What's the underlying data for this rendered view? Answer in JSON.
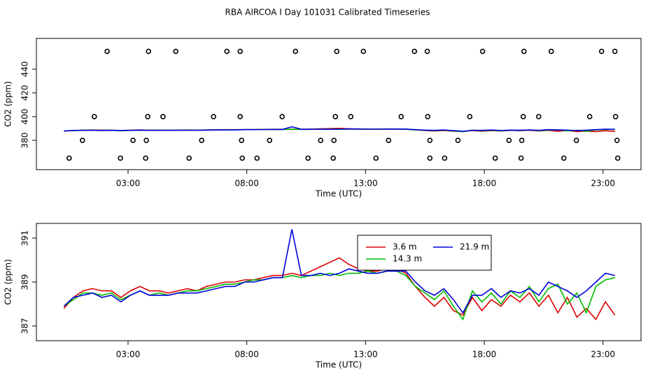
{
  "chart_data": [
    {
      "type": "scatter",
      "title": "RBA AIRCOA I  Day 101031  Calibrated Timeseries",
      "xlabel": "Time (UTC)",
      "ylabel": "CO2 (ppm)",
      "xlim": [
        -0.86,
        24.6
      ],
      "xticks": [
        {
          "value": 3,
          "label": "03:00"
        },
        {
          "value": 8,
          "label": "08:00"
        },
        {
          "value": 13,
          "label": "13:00"
        },
        {
          "value": 18,
          "label": "18:00"
        },
        {
          "value": 23,
          "label": "23:00"
        }
      ],
      "ylim": [
        355.3,
        465.9
      ],
      "yticks": [
        380,
        400,
        420,
        440
      ],
      "series": [
        {
          "color": "#000000",
          "x": [
            2.12,
            3.86,
            5.01,
            7.16,
            7.72,
            10.05,
            11.79,
            12.91,
            15.06,
            15.6,
            17.93,
            19.67,
            20.82,
            22.94,
            23.5,
            1.58,
            3.83,
            4.47,
            6.6,
            7.72,
            9.49,
            11.73,
            12.38,
            14.5,
            15.62,
            17.39,
            19.64,
            20.29,
            22.44,
            23.53,
            1.08,
            3.21,
            3.77,
            6.1,
            7.78,
            8.96,
            11.11,
            11.67,
            13.97,
            15.71,
            16.89,
            19.04,
            19.58,
            21.88,
            23.59,
            0.52,
            2.68,
            3.74,
            5.57,
            7.81,
            8.43,
            10.58,
            11.64,
            13.44,
            15.71,
            16.33,
            18.46,
            19.55,
            21.35,
            23.62
          ],
          "values": [
            455,
            455,
            455,
            455,
            455,
            455,
            455,
            455,
            455,
            455,
            455,
            455,
            455,
            455,
            455,
            400,
            400,
            400,
            400,
            400,
            400,
            400,
            400,
            400,
            400,
            400,
            400,
            400,
            400,
            400,
            380,
            380,
            380,
            380,
            380,
            380,
            380,
            380,
            380,
            380,
            380,
            380,
            380,
            380,
            380,
            365,
            365,
            365,
            365,
            365,
            365,
            365,
            365,
            365,
            365,
            365,
            365,
            365,
            365,
            365
          ]
        }
      ]
    },
    {
      "type": "line",
      "xlabel": "Time (UTC)",
      "ylabel": "CO2 (ppm)",
      "legend": "top",
      "xlim": [
        -0.86,
        24.6
      ],
      "xticks": [
        {
          "value": 3,
          "label": "03:00"
        },
        {
          "value": 8,
          "label": "08:00"
        },
        {
          "value": 13,
          "label": "13:00"
        },
        {
          "value": 18,
          "label": "18:00"
        },
        {
          "value": 23,
          "label": "23:00"
        }
      ],
      "ylim": [
        386.33,
        391.67
      ],
      "yticks": [
        387,
        389,
        391
      ],
      "x": [
        0.3,
        0.7,
        1.1,
        1.5,
        1.9,
        2.3,
        2.7,
        3.1,
        3.5,
        3.9,
        4.3,
        4.7,
        5.1,
        5.5,
        5.9,
        6.3,
        6.7,
        7.1,
        7.5,
        7.9,
        8.3,
        8.7,
        9.1,
        9.5,
        9.9,
        10.3,
        10.7,
        11.1,
        11.5,
        11.9,
        12.3,
        12.7,
        13.1,
        13.5,
        13.9,
        14.3,
        14.7,
        15.1,
        15.5,
        15.9,
        16.3,
        16.7,
        17.1,
        17.5,
        17.9,
        18.3,
        18.7,
        19.1,
        19.5,
        19.9,
        20.3,
        20.7,
        21.1,
        21.5,
        21.9,
        22.3,
        22.7,
        23.1,
        23.5
      ],
      "series": [
        {
          "name": "3.6 m",
          "color": "#dd0000",
          "values": [
            387.8,
            388.3,
            388.6,
            388.7,
            388.6,
            388.6,
            388.3,
            388.6,
            388.8,
            388.6,
            388.6,
            388.5,
            388.6,
            388.7,
            388.6,
            388.8,
            388.9,
            389.0,
            389.0,
            389.1,
            389.1,
            389.2,
            389.3,
            389.3,
            389.4,
            389.3,
            389.5,
            389.7,
            389.9,
            390.1,
            389.8,
            389.6,
            389.5,
            389.5,
            389.6,
            389.6,
            389.4,
            388.8,
            388.3,
            387.9,
            388.3,
            387.7,
            387.5,
            388.3,
            387.7,
            388.2,
            387.9,
            388.4,
            388.1,
            388.5,
            387.9,
            388.4,
            387.6,
            388.3,
            387.4,
            387.8,
            387.3,
            388.1,
            387.5
          ]
        },
        {
          "name": "14.3 m",
          "color": "#00bb00",
          "values": [
            387.9,
            388.2,
            388.5,
            388.5,
            388.4,
            388.5,
            388.2,
            388.4,
            388.6,
            388.4,
            388.5,
            388.4,
            388.5,
            388.6,
            388.6,
            388.7,
            388.8,
            388.9,
            388.9,
            389.0,
            389.1,
            389.1,
            389.2,
            389.2,
            389.3,
            389.2,
            389.3,
            389.3,
            389.4,
            389.3,
            389.4,
            389.4,
            389.5,
            389.4,
            389.5,
            389.5,
            389.3,
            388.8,
            388.5,
            388.2,
            388.6,
            387.9,
            387.3,
            388.6,
            388.1,
            388.5,
            388.0,
            388.6,
            388.3,
            388.8,
            388.1,
            388.7,
            388.9,
            388.0,
            388.5,
            387.6,
            388.8,
            389.1,
            389.2
          ]
        },
        {
          "name": "21.9 m",
          "color": "#0000dd",
          "values": [
            387.9,
            388.3,
            388.4,
            388.5,
            388.3,
            388.4,
            388.1,
            388.4,
            388.6,
            388.4,
            388.4,
            388.4,
            388.5,
            388.5,
            388.5,
            388.6,
            388.7,
            388.8,
            388.8,
            389.0,
            389.0,
            389.1,
            389.2,
            389.2,
            391.4,
            389.3,
            389.3,
            389.4,
            389.3,
            389.4,
            389.6,
            389.5,
            389.4,
            389.4,
            389.5,
            389.5,
            389.5,
            389.0,
            388.6,
            388.4,
            388.7,
            388.2,
            387.6,
            388.4,
            388.4,
            388.7,
            388.3,
            388.6,
            388.5,
            388.7,
            388.4,
            389.0,
            388.8,
            388.6,
            388.3,
            388.6,
            389.0,
            389.4,
            389.3
          ]
        }
      ]
    }
  ]
}
